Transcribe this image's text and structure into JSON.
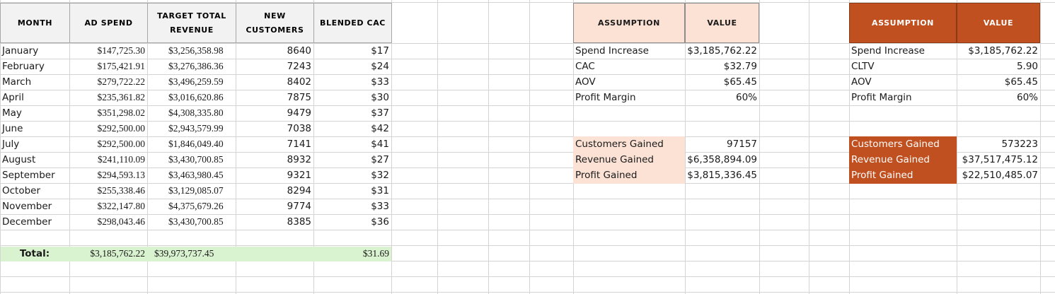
{
  "monthly_table": {
    "headers": [
      "Month",
      "Ad Spend",
      "Target Total Revenue",
      "New Customers",
      "Blended CAC"
    ],
    "rows": [
      [
        "January",
        "$147,725.30",
        "$3,256,358.98",
        "8640",
        "$17"
      ],
      [
        "February",
        "$175,421.91",
        "$3,276,386.36",
        "7243",
        "$24"
      ],
      [
        "March",
        "$279,722.22",
        "$3,496,259.59",
        "8402",
        "$33"
      ],
      [
        "April",
        "$235,361.82",
        "$3,016,620.86",
        "7875",
        "$30"
      ],
      [
        "May",
        "$351,298.02",
        "$4,308,335.80",
        "9479",
        "$37"
      ],
      [
        "June",
        "$292,500.00",
        "$2,943,579.99",
        "7038",
        "$42"
      ],
      [
        "July",
        "$292,500.00",
        "$1,846,049.40",
        "7141",
        "$41"
      ],
      [
        "August",
        "$241,110.09",
        "$3,430,700.85",
        "8932",
        "$27"
      ],
      [
        "September",
        "$294,593.13",
        "$3,463,980.45",
        "9321",
        "$32"
      ],
      [
        "October",
        "$255,338.46",
        "$3,129,085.07",
        "8294",
        "$31"
      ],
      [
        "November",
        "$322,147.80",
        "$4,375,679.26",
        "9774",
        "$33"
      ],
      [
        "December",
        "$298,043.46",
        "$3,430,700.85",
        "8385",
        "$36"
      ]
    ],
    "total_label": "Total:",
    "total_ad_spend": "$3,185,762.22",
    "total_revenue": "$39,973,737.45",
    "total_cac": "$31.69"
  },
  "assumptions_light": {
    "header_assumption": "Assumption",
    "header_value": "Value",
    "rows": [
      [
        "Spend Increase",
        "$3,185,762.22"
      ],
      [
        "CAC",
        "$32.79"
      ],
      [
        "AOV",
        "$65.45"
      ],
      [
        "Profit Margin",
        "60%"
      ]
    ],
    "results": [
      [
        "Customers Gained",
        "97157"
      ],
      [
        "Revenue Gained",
        "$6,358,894.09"
      ],
      [
        "Profit Gained",
        "$3,815,336.45"
      ]
    ]
  },
  "assumptions_dark": {
    "header_assumption": "Assumption",
    "header_value": "Value",
    "rows": [
      [
        "Spend Increase",
        "$3,185,762.22"
      ],
      [
        "CLTV",
        "5.90"
      ],
      [
        "AOV",
        "$65.45"
      ],
      [
        "Profit Margin",
        "60%"
      ]
    ],
    "results": [
      [
        "Customers Gained",
        "573223"
      ],
      [
        "Revenue Gained",
        "$37,517,475.12"
      ],
      [
        "Profit Gained",
        "$22,510,485.07"
      ]
    ]
  },
  "colors": {
    "header_gray": "#f2f2f2",
    "light_peach": "#fbe2d5",
    "dark_orange": "#c0501f",
    "total_green": "#d9f2d0",
    "gridline": "#d4d4d4"
  }
}
